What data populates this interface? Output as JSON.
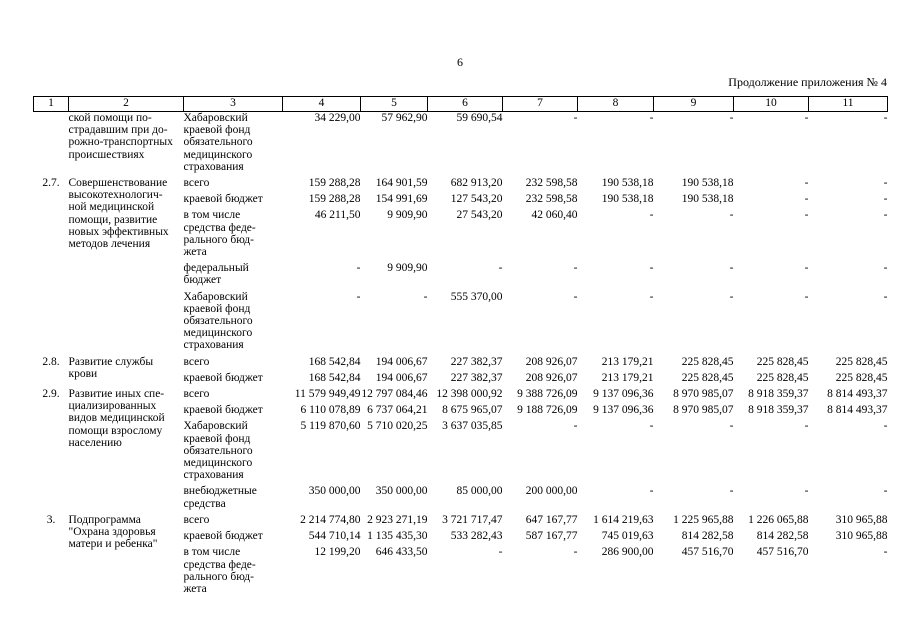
{
  "page": {
    "number": "6",
    "continuation_title": "Продолжение приложения № 4"
  },
  "table": {
    "headers": [
      "1",
      "2",
      "3",
      "4",
      "5",
      "6",
      "7",
      "8",
      "9",
      "10",
      "11"
    ],
    "groups": [
      {
        "num": "",
        "name": "ской помощи по-\nстрадавшим при до-\nрожно-транспортных\nпроисшествиях",
        "subrows": [
          {
            "label": "Хабаровский\nкраевой фонд\nобязательного\nмедицинского\nстрахования",
            "values": [
              "34 229,00",
              "57 962,90",
              "59 690,54",
              "-",
              "-",
              "-",
              "-",
              "-"
            ]
          }
        ]
      },
      {
        "num": "2.7.",
        "name": "Совершенствование\nвысокотехнологич-\nной медицинской\nпомощи, развитие\nновых эффективных\nметодов лечения",
        "subrows": [
          {
            "label": "всего",
            "values": [
              "159 288,28",
              "164 901,59",
              "682 913,20",
              "232 598,58",
              "190 538,18",
              "190 538,18",
              "-",
              "-"
            ]
          },
          {
            "label": "краевой бюджет",
            "values": [
              "159 288,28",
              "154 991,69",
              "127 543,20",
              "232 598,58",
              "190 538,18",
              "190 538,18",
              "-",
              "-"
            ]
          },
          {
            "label": "в том числе\nсредства феде-\nрального бюд-\nжета",
            "values": [
              "46 211,50",
              "9 909,90",
              "27 543,20",
              "42 060,40",
              "-",
              "-",
              "-",
              "-"
            ]
          },
          {
            "label": "федеральный\nбюджет",
            "values": [
              "-",
              "9 909,90",
              "-",
              "-",
              "-",
              "-",
              "-",
              "-"
            ]
          },
          {
            "label": "Хабаровский\nкраевой фонд\nобязательного\nмедицинского\nстрахования",
            "values": [
              "-",
              "-",
              "555 370,00",
              "-",
              "-",
              "-",
              "-",
              "-"
            ]
          }
        ]
      },
      {
        "num": "2.8.",
        "name": "Развитие службы\nкрови",
        "subrows": [
          {
            "label": "всего",
            "values": [
              "168 542,84",
              "194 006,67",
              "227 382,37",
              "208 926,07",
              "213 179,21",
              "225 828,45",
              "225 828,45",
              "225 828,45"
            ]
          },
          {
            "label": "краевой бюджет",
            "values": [
              "168 542,84",
              "194 006,67",
              "227 382,37",
              "208 926,07",
              "213 179,21",
              "225 828,45",
              "225 828,45",
              "225 828,45"
            ]
          }
        ]
      },
      {
        "num": "2.9.",
        "name": "Развитие иных спе-\nциализированных\nвидов медицинской\nпомощи взрослому\nнаселению",
        "subrows": [
          {
            "label": "всего",
            "values": [
              "11 579 949,49",
              "12 797 084,46",
              "12 398 000,92",
              "9 388 726,09",
              "9 137 096,36",
              "8 970 985,07",
              "8 918 359,37",
              "8 814 493,37"
            ]
          },
          {
            "label": "краевой бюджет",
            "values": [
              "6 110 078,89",
              "6 737 064,21",
              "8 675 965,07",
              "9 188 726,09",
              "9 137 096,36",
              "8 970 985,07",
              "8 918 359,37",
              "8 814 493,37"
            ]
          },
          {
            "label": "Хабаровский\nкраевой фонд\nобязательного\nмедицинского\nстрахования",
            "values": [
              "5 119 870,60",
              "5 710 020,25",
              "3 637 035,85",
              "-",
              "-",
              "-",
              "-",
              "-"
            ]
          },
          {
            "label": "внебюджетные\nсредства",
            "values": [
              "350 000,00",
              "350 000,00",
              "85 000,00",
              "200 000,00",
              "-",
              "-",
              "-",
              "-"
            ]
          }
        ]
      },
      {
        "num": "3.",
        "name": "Подпрограмма\n\"Охрана здоровья\nматери и ребенка\"",
        "subrows": [
          {
            "label": "всего",
            "values": [
              "2 214 774,80",
              "2 923 271,19",
              "3 721 717,47",
              "647 167,77",
              "1 614 219,63",
              "1 225 965,88",
              "1 226 065,88",
              "310 965,88"
            ]
          },
          {
            "label": "краевой бюджет",
            "values": [
              "544 710,14",
              "1 135 435,30",
              "533 282,43",
              "587 167,77",
              "745 019,63",
              "814 282,58",
              "814 282,58",
              "310 965,88"
            ]
          },
          {
            "label": "в том числе\nсредства феде-\nрального бюд-\nжета",
            "values": [
              "12 199,20",
              "646 433,50",
              "-",
              "-",
              "286 900,00",
              "457 516,70",
              "457 516,70",
              "-"
            ]
          }
        ]
      }
    ]
  }
}
